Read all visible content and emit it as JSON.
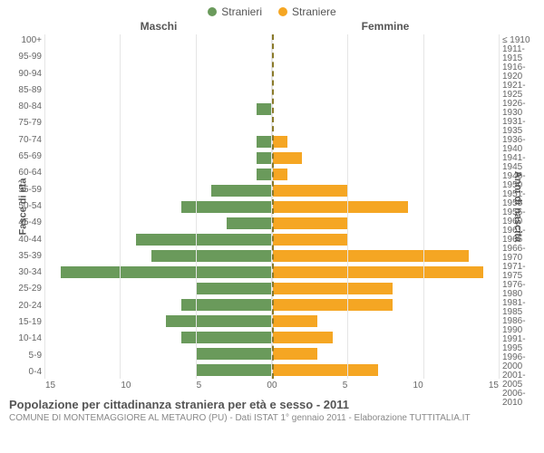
{
  "legend": {
    "male": {
      "label": "Stranieri",
      "color": "#6a9a5b"
    },
    "female": {
      "label": "Straniere",
      "color": "#f5a623"
    }
  },
  "headers": {
    "male": "Maschi",
    "female": "Femmine"
  },
  "axes": {
    "left_title": "Fasce di età",
    "right_title": "Anni di nascita",
    "x_max": 15,
    "x_ticks_left": [
      "15",
      "10",
      "5",
      "0"
    ],
    "x_ticks_right": [
      "0",
      "5",
      "10",
      "15"
    ]
  },
  "age_groups": [
    "100+",
    "95-99",
    "90-94",
    "85-89",
    "80-84",
    "75-79",
    "70-74",
    "65-69",
    "60-64",
    "55-59",
    "50-54",
    "45-49",
    "40-44",
    "35-39",
    "30-34",
    "25-29",
    "20-24",
    "15-19",
    "10-14",
    "5-9",
    "0-4"
  ],
  "birth_years": [
    "≤ 1910",
    "1911-1915",
    "1916-1920",
    "1921-1925",
    "1926-1930",
    "1931-1935",
    "1936-1940",
    "1941-1945",
    "1946-1950",
    "1951-1955",
    "1956-1960",
    "1961-1965",
    "1966-1970",
    "1971-1975",
    "1976-1980",
    "1981-1985",
    "1986-1990",
    "1991-1995",
    "1996-2000",
    "2001-2005",
    "2006-2010"
  ],
  "male_values": [
    0,
    0,
    0,
    0,
    1,
    0,
    1,
    1,
    1,
    4,
    6,
    3,
    9,
    8,
    14,
    5,
    6,
    7,
    6,
    5,
    5
  ],
  "female_values": [
    0,
    0,
    0,
    0,
    0,
    0,
    1,
    2,
    1,
    5,
    9,
    5,
    5,
    13,
    14,
    8,
    8,
    3,
    4,
    3,
    7
  ],
  "colors": {
    "male_bar": "#6a9a5b",
    "female_bar": "#f5a623",
    "grid": "#e5e5e5",
    "center_dash": "#8a7a2a",
    "background": "#ffffff",
    "text": "#666666",
    "title_text": "#555555"
  },
  "title": "Popolazione per cittadinanza straniera per età e sesso - 2011",
  "subtitle": "COMUNE DI MONTEMAGGIORE AL METAURO (PU) - Dati ISTAT 1° gennaio 2011 - Elaborazione TUTTITALIA.IT"
}
